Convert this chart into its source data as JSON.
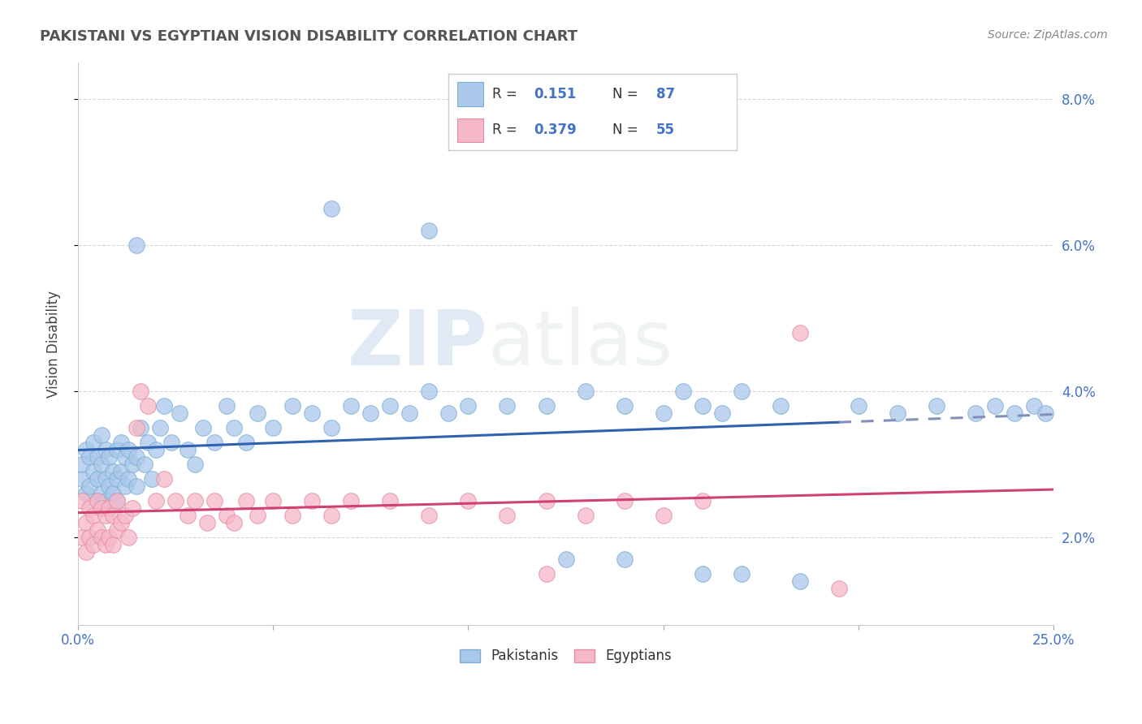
{
  "title": "PAKISTANI VS EGYPTIAN VISION DISABILITY CORRELATION CHART",
  "source": "Source: ZipAtlas.com",
  "ylabel": "Vision Disability",
  "xlim": [
    0.0,
    0.25
  ],
  "ylim": [
    0.008,
    0.085
  ],
  "x_tick_positions": [
    0.0,
    0.05,
    0.1,
    0.15,
    0.2,
    0.25
  ],
  "x_tick_labels": [
    "0.0%",
    "",
    "",
    "",
    "",
    "25.0%"
  ],
  "y_tick_positions": [
    0.02,
    0.04,
    0.06,
    0.08
  ],
  "y_tick_labels": [
    "2.0%",
    "4.0%",
    "6.0%",
    "8.0%"
  ],
  "pakistani_R": 0.151,
  "pakistani_N": 87,
  "egyptian_R": 0.379,
  "egyptian_N": 55,
  "pakistani_color": "#aac8ea",
  "pakistani_edge_color": "#7aafd4",
  "egyptian_color": "#f5b8c8",
  "egyptian_edge_color": "#e88aa0",
  "pakistani_line_color": "#3060b0",
  "pakistani_dash_color": "#8090b8",
  "egyptian_line_color": "#d04070",
  "background_color": "#ffffff",
  "grid_color": "#cccccc",
  "watermark_zip": "ZIP",
  "watermark_atlas": "atlas",
  "legend_text_color": "#4472C4",
  "legend_border_color": "#cccccc",
  "title_color": "#555555",
  "ylabel_color": "#444444",
  "tick_color": "#4472C4",
  "pakistani_x": [
    0.001,
    0.001,
    0.002,
    0.002,
    0.003,
    0.003,
    0.004,
    0.004,
    0.005,
    0.005,
    0.005,
    0.006,
    0.006,
    0.006,
    0.007,
    0.007,
    0.007,
    0.008,
    0.008,
    0.009,
    0.009,
    0.01,
    0.01,
    0.01,
    0.011,
    0.011,
    0.012,
    0.012,
    0.013,
    0.013,
    0.014,
    0.015,
    0.015,
    0.016,
    0.017,
    0.018,
    0.019,
    0.02,
    0.021,
    0.022,
    0.024,
    0.026,
    0.028,
    0.03,
    0.032,
    0.035,
    0.038,
    0.04,
    0.043,
    0.046,
    0.05,
    0.055,
    0.06,
    0.065,
    0.07,
    0.075,
    0.08,
    0.085,
    0.09,
    0.095,
    0.1,
    0.11,
    0.12,
    0.13,
    0.14,
    0.15,
    0.155,
    0.16,
    0.165,
    0.17,
    0.18,
    0.065,
    0.09,
    0.015,
    0.125,
    0.14,
    0.16,
    0.17,
    0.185,
    0.2,
    0.21,
    0.22,
    0.23,
    0.235,
    0.24,
    0.245,
    0.248
  ],
  "pakistani_y": [
    0.028,
    0.03,
    0.026,
    0.032,
    0.027,
    0.031,
    0.029,
    0.033,
    0.025,
    0.028,
    0.031,
    0.026,
    0.03,
    0.034,
    0.025,
    0.028,
    0.032,
    0.027,
    0.031,
    0.026,
    0.029,
    0.025,
    0.028,
    0.032,
    0.029,
    0.033,
    0.027,
    0.031,
    0.028,
    0.032,
    0.03,
    0.027,
    0.031,
    0.035,
    0.03,
    0.033,
    0.028,
    0.032,
    0.035,
    0.038,
    0.033,
    0.037,
    0.032,
    0.03,
    0.035,
    0.033,
    0.038,
    0.035,
    0.033,
    0.037,
    0.035,
    0.038,
    0.037,
    0.035,
    0.038,
    0.037,
    0.038,
    0.037,
    0.04,
    0.037,
    0.038,
    0.038,
    0.038,
    0.04,
    0.038,
    0.037,
    0.04,
    0.038,
    0.037,
    0.04,
    0.038,
    0.065,
    0.062,
    0.06,
    0.017,
    0.017,
    0.015,
    0.015,
    0.014,
    0.038,
    0.037,
    0.038,
    0.037,
    0.038,
    0.037,
    0.038,
    0.037
  ],
  "egyptian_x": [
    0.001,
    0.001,
    0.002,
    0.002,
    0.003,
    0.003,
    0.004,
    0.004,
    0.005,
    0.005,
    0.006,
    0.006,
    0.007,
    0.007,
    0.008,
    0.008,
    0.009,
    0.009,
    0.01,
    0.01,
    0.011,
    0.012,
    0.013,
    0.014,
    0.015,
    0.016,
    0.018,
    0.02,
    0.022,
    0.025,
    0.028,
    0.03,
    0.033,
    0.035,
    0.038,
    0.04,
    0.043,
    0.046,
    0.05,
    0.055,
    0.06,
    0.065,
    0.07,
    0.08,
    0.09,
    0.1,
    0.11,
    0.12,
    0.13,
    0.14,
    0.15,
    0.16,
    0.185,
    0.12,
    0.195
  ],
  "egyptian_y": [
    0.025,
    0.02,
    0.022,
    0.018,
    0.02,
    0.024,
    0.019,
    0.023,
    0.021,
    0.025,
    0.02,
    0.024,
    0.019,
    0.023,
    0.02,
    0.024,
    0.019,
    0.023,
    0.021,
    0.025,
    0.022,
    0.023,
    0.02,
    0.024,
    0.035,
    0.04,
    0.038,
    0.025,
    0.028,
    0.025,
    0.023,
    0.025,
    0.022,
    0.025,
    0.023,
    0.022,
    0.025,
    0.023,
    0.025,
    0.023,
    0.025,
    0.023,
    0.025,
    0.025,
    0.023,
    0.025,
    0.023,
    0.025,
    0.023,
    0.025,
    0.023,
    0.025,
    0.048,
    0.015,
    0.013
  ]
}
